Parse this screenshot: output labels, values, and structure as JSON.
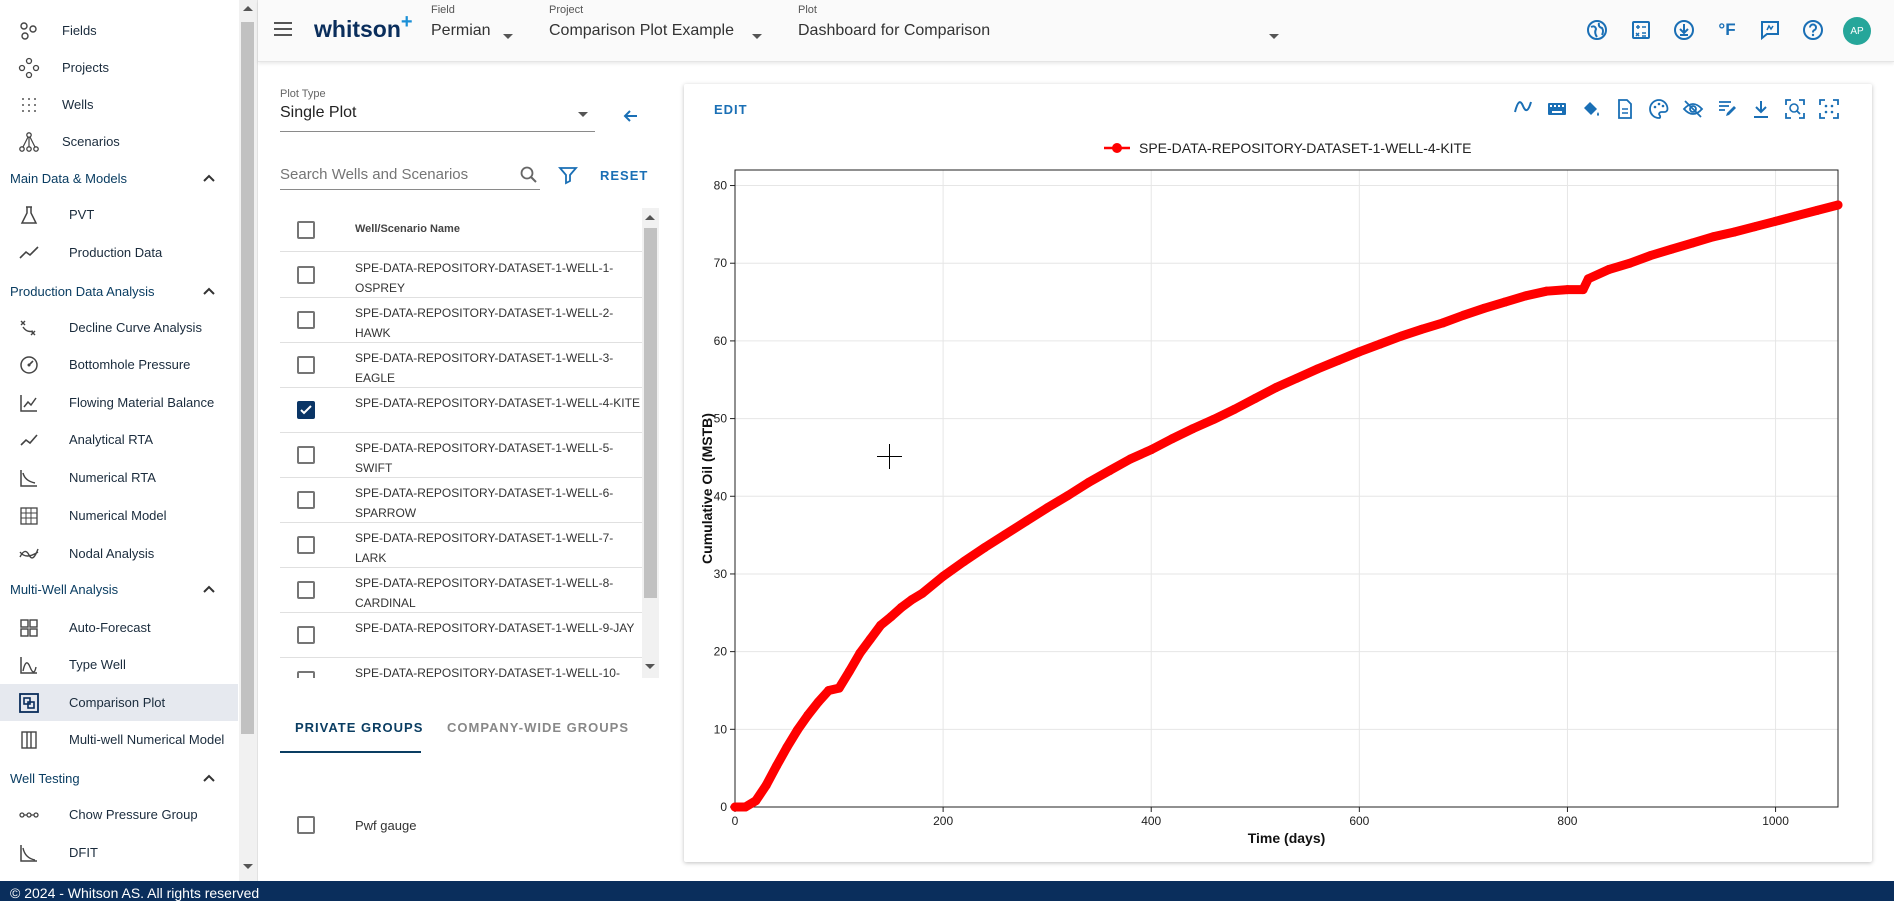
{
  "sidebar": {
    "top_items": [
      {
        "label": "Fields",
        "icon": "fields-icon"
      },
      {
        "label": "Projects",
        "icon": "projects-icon"
      },
      {
        "label": "Wells",
        "icon": "wells-icon"
      },
      {
        "label": "Scenarios",
        "icon": "scenarios-icon"
      }
    ],
    "sections": [
      {
        "title": "Main Data & Models",
        "items": [
          {
            "label": "PVT",
            "icon": "flask-icon"
          },
          {
            "label": "Production Data",
            "icon": "production-line-icon"
          }
        ]
      },
      {
        "title": "Production Data Analysis",
        "items": [
          {
            "label": "Decline Curve Analysis",
            "icon": "decline-curve-icon"
          },
          {
            "label": "Bottomhole Pressure",
            "icon": "gauge-icon"
          },
          {
            "label": "Flowing Material Balance",
            "icon": "chart-icon"
          },
          {
            "label": "Analytical RTA",
            "icon": "trend-icon"
          },
          {
            "label": "Numerical RTA",
            "icon": "rta-curve-icon"
          },
          {
            "label": "Numerical Model",
            "icon": "grid-model-icon"
          },
          {
            "label": "Nodal Analysis",
            "icon": "nodal-icon"
          }
        ]
      },
      {
        "title": "Multi-Well Analysis",
        "items": [
          {
            "label": "Auto-Forecast",
            "icon": "dashboard-grid-icon"
          },
          {
            "label": "Type Well",
            "icon": "type-curve-icon"
          },
          {
            "label": "Comparison Plot",
            "icon": "comparison-icon"
          },
          {
            "label": "Multi-well Numerical Model",
            "icon": "columns-icon"
          }
        ]
      },
      {
        "title": "Well Testing",
        "items": [
          {
            "label": "Chow Pressure Group",
            "icon": "chow-icon"
          },
          {
            "label": "DFIT",
            "icon": "dfit-icon"
          }
        ]
      }
    ],
    "active": "Comparison Plot"
  },
  "topbar": {
    "logo": "whitson",
    "logo_plus": "+",
    "field": {
      "caption": "Field",
      "value": "Permian"
    },
    "project": {
      "caption": "Project",
      "value": "Comparison Plot Example"
    },
    "plot": {
      "caption": "Plot",
      "value": "Dashboard for Comparison"
    },
    "temp_unit": "°F",
    "avatar": "AP",
    "accent": "#1a6fb5"
  },
  "left_panel": {
    "plot_type_caption": "Plot Type",
    "plot_type_value": "Single Plot",
    "search_placeholder": "Search Wells and Scenarios",
    "reset_label": "RESET",
    "column_header": "Well/Scenario Name",
    "rows": [
      {
        "name": "SPE-DATA-REPOSITORY-DATASET-1-WELL-1-OSPREY",
        "checked": false
      },
      {
        "name": "SPE-DATA-REPOSITORY-DATASET-1-WELL-2-HAWK",
        "checked": false
      },
      {
        "name": "SPE-DATA-REPOSITORY-DATASET-1-WELL-3-EAGLE",
        "checked": false
      },
      {
        "name": "SPE-DATA-REPOSITORY-DATASET-1-WELL-4-KITE",
        "checked": true
      },
      {
        "name": "SPE-DATA-REPOSITORY-DATASET-1-WELL-5-SWIFT",
        "checked": false
      },
      {
        "name": "SPE-DATA-REPOSITORY-DATASET-1-WELL-6-SPARROW",
        "checked": false
      },
      {
        "name": "SPE-DATA-REPOSITORY-DATASET-1-WELL-7-LARK",
        "checked": false
      },
      {
        "name": "SPE-DATA-REPOSITORY-DATASET-1-WELL-8-CARDINAL",
        "checked": false
      },
      {
        "name": "SPE-DATA-REPOSITORY-DATASET-1-WELL-9-JAY",
        "checked": false
      },
      {
        "name": "SPE-DATA-REPOSITORY-DATASET-1-WELL-10-",
        "checked": false
      }
    ],
    "tabs": [
      {
        "label": "PRIVATE GROUPS",
        "active": true
      },
      {
        "label": "COMPANY-WIDE GROUPS",
        "active": false
      }
    ],
    "groups": [
      {
        "name": "Pwf gauge",
        "checked": false
      }
    ]
  },
  "chart_panel": {
    "edit_label": "EDIT",
    "toolbar_icons": [
      "curve-icon",
      "keyboard-icon",
      "paint-bucket-icon",
      "document-icon",
      "palette-icon",
      "hide-icon",
      "edit-note-icon",
      "download-icon",
      "zoom-fit-icon",
      "fullscreen-icon"
    ]
  },
  "chart_data": {
    "type": "line",
    "title": "",
    "xlabel": "Time (days)",
    "ylabel": "Cumulative Oil (MSTB)",
    "xlim": [
      0,
      1060
    ],
    "ylim": [
      0,
      82
    ],
    "xticks": [
      0,
      200,
      400,
      600,
      800,
      1000
    ],
    "yticks": [
      0,
      10,
      20,
      30,
      40,
      50,
      60,
      70,
      80
    ],
    "grid": true,
    "legend_position": "top-center",
    "series": [
      {
        "name": "SPE-DATA-REPOSITORY-DATASET-1-WELL-4-KITE",
        "color": "#ff0000",
        "x": [
          0,
          10,
          20,
          30,
          40,
          50,
          60,
          70,
          80,
          90,
          100,
          110,
          120,
          130,
          140,
          150,
          160,
          170,
          180,
          200,
          220,
          240,
          260,
          280,
          300,
          320,
          340,
          360,
          380,
          400,
          420,
          440,
          460,
          480,
          500,
          520,
          540,
          560,
          580,
          600,
          620,
          640,
          660,
          680,
          700,
          720,
          740,
          760,
          780,
          800,
          815,
          820,
          840,
          860,
          880,
          900,
          920,
          940,
          960,
          980,
          1000,
          1020,
          1040,
          1060
        ],
        "y": [
          0,
          0,
          0.8,
          2.8,
          5.3,
          7.7,
          9.9,
          11.8,
          13.5,
          15.0,
          15.3,
          17.5,
          19.8,
          21.6,
          23.4,
          24.5,
          25.7,
          26.7,
          27.5,
          29.7,
          31.6,
          33.4,
          35.1,
          36.8,
          38.5,
          40.1,
          41.8,
          43.3,
          44.8,
          46.0,
          47.4,
          48.7,
          49.9,
          51.2,
          52.6,
          54.0,
          55.2,
          56.4,
          57.5,
          58.6,
          59.6,
          60.6,
          61.5,
          62.3,
          63.3,
          64.2,
          65.0,
          65.8,
          66.4,
          66.6,
          66.6,
          68.0,
          69.2,
          70.0,
          71.0,
          71.8,
          72.6,
          73.4,
          74.0,
          74.7,
          75.4,
          76.1,
          76.8,
          77.5
        ]
      }
    ]
  }
}
